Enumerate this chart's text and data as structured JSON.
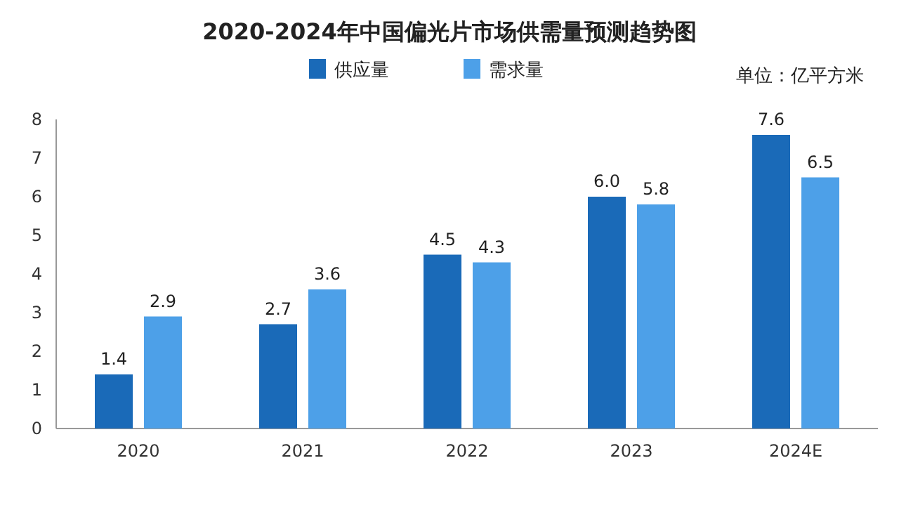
{
  "chart_data": {
    "type": "bar",
    "title": "2020-2024年中国偏光片市场供需量预测趋势图",
    "annotations": [
      "单位：亿平方米"
    ],
    "categories": [
      "2020",
      "2021",
      "2022",
      "2023",
      "2024E"
    ],
    "series": [
      {
        "name": "供应量",
        "color": "#1a6ab8",
        "values": [
          1.4,
          2.7,
          4.5,
          6.0,
          7.6
        ],
        "value_labels": [
          "1.4",
          "2.7",
          "4.5",
          "6.0",
          "7.6"
        ]
      },
      {
        "name": "需求量",
        "color": "#4da0e8",
        "values": [
          2.9,
          3.6,
          4.3,
          5.8,
          6.5
        ],
        "value_labels": [
          "2.9",
          "3.6",
          "4.3",
          "5.8",
          "6.5"
        ]
      }
    ],
    "ylim": [
      0,
      8
    ],
    "yticks": [
      0,
      1,
      2,
      3,
      4,
      5,
      6,
      7,
      8
    ],
    "legend": "top right"
  }
}
